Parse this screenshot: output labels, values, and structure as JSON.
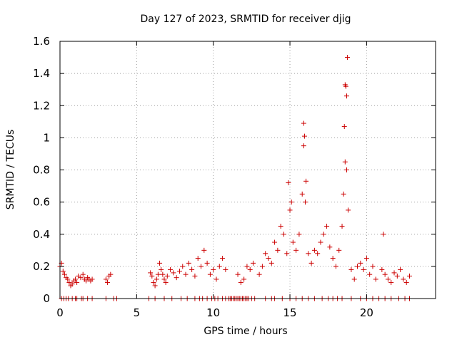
{
  "chart_data": {
    "type": "scatter",
    "title": "Day 127 of 2023, SRMTID for receiver djig",
    "xlabel": "GPS time / hours",
    "ylabel": "SRMTID / TECUs",
    "xlim": [
      0,
      24.5
    ],
    "ylim": [
      0,
      1.6
    ],
    "x_ticks": [
      0,
      5,
      10,
      15,
      20
    ],
    "x_tick_labels": [
      "0",
      "5",
      "10",
      "15",
      "20"
    ],
    "y_ticks": [
      0,
      0.2,
      0.4,
      0.6,
      0.8,
      1.0,
      1.2,
      1.4,
      1.6
    ],
    "y_tick_labels": [
      "0",
      "0.2",
      "0.4",
      "0.6",
      "0.8",
      "1",
      "1.2",
      "1.4",
      "1.6"
    ],
    "grid": true,
    "marker": "+",
    "colors": {
      "series": "#cc0000",
      "grid": "#a0a0a0",
      "frame": "#000000"
    },
    "series": [
      {
        "name": "SRMTID",
        "x": [
          0.0,
          0.1,
          0.2,
          0.3,
          0.4,
          0.5,
          0.6,
          0.7,
          0.8,
          0.9,
          1.0,
          1.1,
          1.2,
          1.35,
          1.5,
          1.6,
          1.7,
          1.8,
          1.9,
          2.0,
          2.1,
          3.0,
          3.1,
          3.2,
          3.3,
          5.9,
          6.0,
          6.1,
          6.2,
          6.3,
          6.4,
          6.5,
          6.6,
          6.7,
          6.8,
          6.9,
          7.0,
          7.2,
          7.4,
          7.6,
          7.8,
          8.0,
          8.2,
          8.4,
          8.6,
          8.8,
          9.0,
          9.2,
          9.4,
          9.6,
          9.8,
          10.0,
          10.2,
          10.4,
          10.6,
          10.8,
          11.6,
          11.8,
          12.0,
          12.2,
          12.4,
          12.6,
          13.0,
          13.2,
          13.4,
          13.6,
          13.8,
          14.0,
          14.2,
          14.4,
          14.6,
          14.8,
          15.0,
          15.2,
          15.4,
          15.6,
          15.8,
          15.9,
          16.0,
          16.2,
          16.4,
          16.6,
          16.8,
          17.0,
          17.2,
          17.4,
          17.6,
          17.8,
          18.0,
          18.2,
          18.4,
          18.5,
          18.6,
          18.7,
          18.8,
          19.0,
          19.2,
          19.4,
          19.6,
          19.8,
          20.0,
          20.2,
          20.4,
          20.6,
          21.0,
          21.1,
          21.2,
          21.4,
          21.6,
          21.8,
          22.0,
          22.2,
          22.4,
          22.6,
          22.8,
          15.9,
          15.95,
          18.6,
          18.65,
          18.7,
          18.75,
          18.55,
          16.05,
          14.9,
          15.1
        ],
        "y": [
          0.2,
          0.22,
          0.17,
          0.15,
          0.13,
          0.12,
          0.1,
          0.08,
          0.09,
          0.11,
          0.12,
          0.1,
          0.14,
          0.13,
          0.15,
          0.12,
          0.11,
          0.13,
          0.12,
          0.11,
          0.12,
          0.12,
          0.1,
          0.14,
          0.15,
          0.16,
          0.14,
          0.1,
          0.08,
          0.12,
          0.15,
          0.22,
          0.18,
          0.15,
          0.12,
          0.1,
          0.14,
          0.18,
          0.16,
          0.13,
          0.17,
          0.2,
          0.15,
          0.22,
          0.18,
          0.14,
          0.25,
          0.2,
          0.3,
          0.22,
          0.15,
          0.18,
          0.12,
          0.2,
          0.25,
          0.18,
          0.15,
          0.1,
          0.12,
          0.2,
          0.18,
          0.22,
          0.15,
          0.2,
          0.28,
          0.25,
          0.22,
          0.35,
          0.3,
          0.45,
          0.4,
          0.28,
          0.55,
          0.35,
          0.3,
          0.4,
          0.65,
          0.95,
          0.6,
          0.28,
          0.22,
          0.3,
          0.28,
          0.35,
          0.4,
          0.45,
          0.32,
          0.25,
          0.2,
          0.3,
          0.45,
          0.65,
          0.85,
          0.8,
          0.55,
          0.18,
          0.12,
          0.2,
          0.22,
          0.18,
          0.25,
          0.15,
          0.2,
          0.12,
          0.18,
          0.4,
          0.15,
          0.12,
          0.1,
          0.16,
          0.14,
          0.18,
          0.12,
          0.1,
          0.14,
          1.09,
          1.01,
          1.33,
          1.32,
          1.26,
          1.5,
          1.07,
          0.73,
          0.72,
          0.6
        ],
        "zero_markers_x": [
          0.1,
          0.25,
          0.4,
          0.55,
          0.8,
          1.0,
          1.1,
          1.4,
          1.5,
          1.8,
          2.1,
          3.0,
          3.5,
          3.7,
          5.8,
          6.2,
          6.8,
          7.3,
          7.9,
          8.3,
          8.8,
          9.1,
          9.3,
          9.6,
          9.9,
          10.1,
          10.3,
          10.6,
          10.8,
          11.0,
          11.1,
          11.2,
          11.3,
          11.4,
          11.5,
          11.6,
          11.7,
          11.8,
          11.9,
          12.0,
          12.1,
          12.2,
          12.3,
          12.5,
          12.7,
          13.4,
          13.8,
          14.0,
          14.5,
          15.0,
          15.4,
          15.8,
          16.2,
          16.6,
          17.1,
          17.5,
          17.8,
          18.1,
          18.4,
          19.0,
          19.6,
          20.0,
          20.4,
          20.8,
          21.2,
          21.6,
          22.1,
          22.5,
          22.8
        ]
      }
    ]
  }
}
